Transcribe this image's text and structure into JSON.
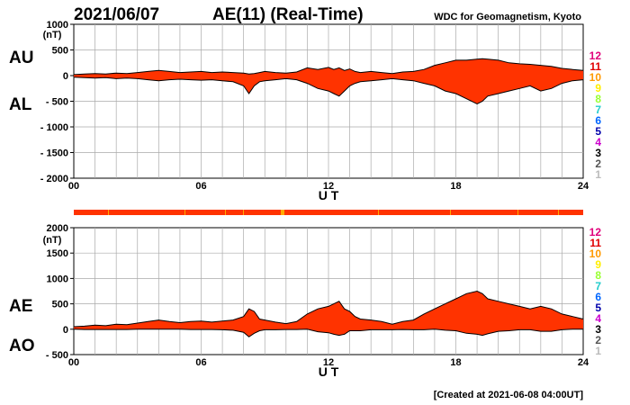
{
  "header": {
    "date": "2021/06/07",
    "title": "AE(11) (Real-Time)",
    "source": "WDC for Geomagnetism, Kyoto"
  },
  "footer": {
    "created": "[Created at 2021-06-08 04:00UT]"
  },
  "colors": {
    "fill": "#ff3300",
    "line": "#000000",
    "grid": "#aaaaaa",
    "strip_main": "#ff3300",
    "strip_alt": "#ffaa00"
  },
  "legend_levels": [
    {
      "label": "12",
      "color": "#e0007a"
    },
    {
      "label": "11",
      "color": "#e00000"
    },
    {
      "label": "10",
      "color": "#ff9900"
    },
    {
      "label": "9",
      "color": "#ffee00"
    },
    {
      "label": "8",
      "color": "#99ff33"
    },
    {
      "label": "7",
      "color": "#22cccc"
    },
    {
      "label": "6",
      "color": "#0066ff"
    },
    {
      "label": "5",
      "color": "#0000aa"
    },
    {
      "label": "4",
      "color": "#cc00cc"
    },
    {
      "label": "3",
      "color": "#000000"
    },
    {
      "label": "2",
      "color": "#555555"
    },
    {
      "label": "1",
      "color": "#bbbbbb"
    }
  ],
  "chart_data": [
    {
      "type": "area",
      "upper_name": "AU",
      "lower_name": "AL",
      "ylabel_unit": "(nT)",
      "xlabel": "U T",
      "xlim": [
        0,
        24
      ],
      "ylim": [
        -2000,
        1000
      ],
      "x_ticks": [
        "00",
        "06",
        "12",
        "18",
        "24"
      ],
      "x_tick_values": [
        0,
        6,
        12,
        18,
        24
      ],
      "y_ticks": [
        "1000",
        "500",
        "0",
        "- 500",
        "- 1000",
        "- 1500",
        "- 2000"
      ],
      "y_tick_values": [
        1000,
        500,
        0,
        -500,
        -1000,
        -1500,
        -2000
      ],
      "grid": true,
      "x": [
        0,
        0.5,
        1,
        1.5,
        2,
        2.5,
        3,
        3.5,
        4,
        4.5,
        5,
        5.5,
        6,
        6.5,
        7,
        7.5,
        8,
        8.25,
        8.5,
        8.75,
        9,
        9.5,
        10,
        10.5,
        11,
        11.5,
        12,
        12.25,
        12.5,
        12.75,
        13,
        13.25,
        13.5,
        14,
        14.5,
        15,
        15.5,
        16,
        16.5,
        17,
        17.5,
        18,
        18.5,
        19,
        19.25,
        19.5,
        20,
        20.5,
        21,
        21.5,
        22,
        22.5,
        23,
        23.5,
        24
      ],
      "series": [
        {
          "name": "AU",
          "values": [
            20,
            30,
            40,
            30,
            50,
            40,
            60,
            80,
            100,
            80,
            60,
            70,
            80,
            60,
            70,
            60,
            50,
            30,
            40,
            60,
            80,
            60,
            50,
            70,
            150,
            120,
            160,
            120,
            150,
            100,
            130,
            80,
            60,
            80,
            60,
            40,
            70,
            80,
            120,
            200,
            250,
            300,
            300,
            320,
            330,
            320,
            300,
            250,
            230,
            220,
            200,
            180,
            140,
            120,
            100
          ]
        },
        {
          "name": "AL",
          "values": [
            -30,
            -40,
            -50,
            -40,
            -60,
            -50,
            -60,
            -80,
            -100,
            -80,
            -70,
            -80,
            -90,
            -80,
            -100,
            -120,
            -200,
            -350,
            -200,
            -120,
            -100,
            -80,
            -60,
            -80,
            -150,
            -250,
            -300,
            -350,
            -400,
            -300,
            -200,
            -150,
            -120,
            -100,
            -80,
            -60,
            -80,
            -100,
            -150,
            -200,
            -300,
            -350,
            -450,
            -550,
            -500,
            -400,
            -350,
            -300,
            -250,
            -200,
            -300,
            -250,
            -150,
            -100,
            -80
          ]
        }
      ]
    },
    {
      "type": "area",
      "upper_name": "AE",
      "lower_name": "AO",
      "ylabel_unit": "(nT)",
      "xlabel": "U T",
      "xlim": [
        0,
        24
      ],
      "ylim": [
        -500,
        2000
      ],
      "x_ticks": [
        "00",
        "06",
        "12",
        "18",
        "24"
      ],
      "x_tick_values": [
        0,
        6,
        12,
        18,
        24
      ],
      "y_ticks": [
        "2000",
        "1500",
        "1000",
        "500",
        "0",
        "- 500"
      ],
      "y_tick_values": [
        2000,
        1500,
        1000,
        500,
        0,
        -500
      ],
      "grid": true,
      "x": [
        0,
        0.5,
        1,
        1.5,
        2,
        2.5,
        3,
        3.5,
        4,
        4.5,
        5,
        5.5,
        6,
        6.5,
        7,
        7.5,
        8,
        8.25,
        8.5,
        8.75,
        9,
        9.5,
        10,
        10.5,
        11,
        11.5,
        12,
        12.25,
        12.5,
        12.75,
        13,
        13.25,
        13.5,
        14,
        14.5,
        15,
        15.5,
        16,
        16.5,
        17,
        17.5,
        18,
        18.5,
        19,
        19.25,
        19.5,
        20,
        20.5,
        21,
        21.5,
        22,
        22.5,
        23,
        23.5,
        24
      ],
      "series": [
        {
          "name": "AE",
          "values": [
            50,
            60,
            80,
            70,
            100,
            90,
            120,
            150,
            180,
            150,
            130,
            150,
            160,
            140,
            160,
            180,
            250,
            400,
            350,
            200,
            180,
            140,
            110,
            150,
            300,
            400,
            450,
            500,
            550,
            400,
            350,
            250,
            200,
            180,
            150,
            100,
            150,
            180,
            300,
            400,
            500,
            600,
            700,
            750,
            700,
            600,
            550,
            500,
            450,
            400,
            450,
            400,
            300,
            250,
            200
          ]
        },
        {
          "name": "AO",
          "values": [
            0,
            -5,
            -5,
            -5,
            -5,
            -5,
            0,
            0,
            0,
            0,
            0,
            -5,
            -5,
            -5,
            -10,
            -20,
            -60,
            -150,
            -80,
            -30,
            -10,
            -10,
            -5,
            -5,
            0,
            -50,
            -70,
            -100,
            -120,
            -100,
            -30,
            -30,
            -30,
            -10,
            -10,
            -10,
            -5,
            -10,
            -10,
            0,
            -20,
            -30,
            -80,
            -100,
            -120,
            -90,
            -40,
            -30,
            -10,
            -10,
            -40,
            -40,
            -10,
            0,
            0
          ]
        }
      ]
    }
  ]
}
